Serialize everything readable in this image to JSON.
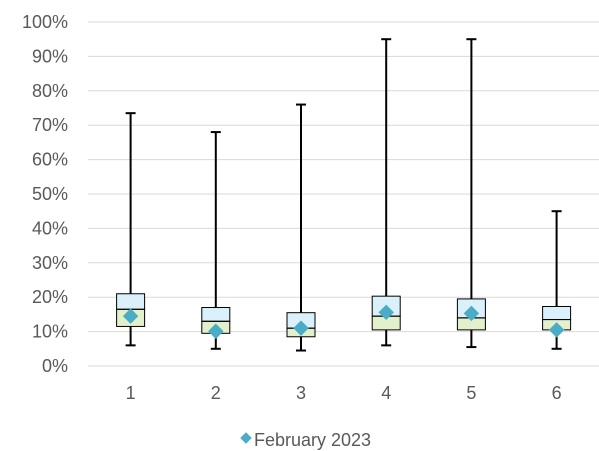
{
  "chart_data": {
    "type": "box",
    "categories": [
      "1",
      "2",
      "3",
      "4",
      "5",
      "6"
    ],
    "y_tick_labels": [
      "0%",
      "10%",
      "20%",
      "30%",
      "40%",
      "50%",
      "60%",
      "70%",
      "80%",
      "90%",
      "100%"
    ],
    "ylim": [
      0,
      100
    ],
    "grid": true,
    "legend_position": "bottom",
    "series": [
      {
        "name": "February 2023",
        "marker": "diamond",
        "color": "#4BACC6",
        "values": [
          14.5,
          10.1,
          11.0,
          15.6,
          15.3,
          10.5
        ]
      }
    ],
    "boxes": [
      {
        "category": "1",
        "min": 6.0,
        "q1": 11.5,
        "median": 16.5,
        "q3": 21.0,
        "max": 73.5
      },
      {
        "category": "2",
        "min": 5.0,
        "q1": 9.5,
        "median": 13.0,
        "q3": 17.0,
        "max": 68.0
      },
      {
        "category": "3",
        "min": 4.5,
        "q1": 8.5,
        "median": 11.0,
        "q3": 15.5,
        "max": 76.0
      },
      {
        "category": "4",
        "min": 6.0,
        "q1": 10.5,
        "median": 14.5,
        "q3": 20.3,
        "max": 95.0
      },
      {
        "category": "5",
        "min": 5.5,
        "q1": 10.5,
        "median": 14.0,
        "q3": 19.5,
        "max": 95.0
      },
      {
        "category": "6",
        "min": 5.0,
        "q1": 10.5,
        "median": 13.5,
        "q3": 17.3,
        "max": 45.0
      }
    ],
    "colors": {
      "upper_box": "#DAF1FB",
      "lower_box": "#E2F0CB",
      "box_stroke": "#000000",
      "whisker": "#000000",
      "grid": "#D9D9D9",
      "axis": "#D9D9D9",
      "tick_text": "#595959"
    }
  }
}
